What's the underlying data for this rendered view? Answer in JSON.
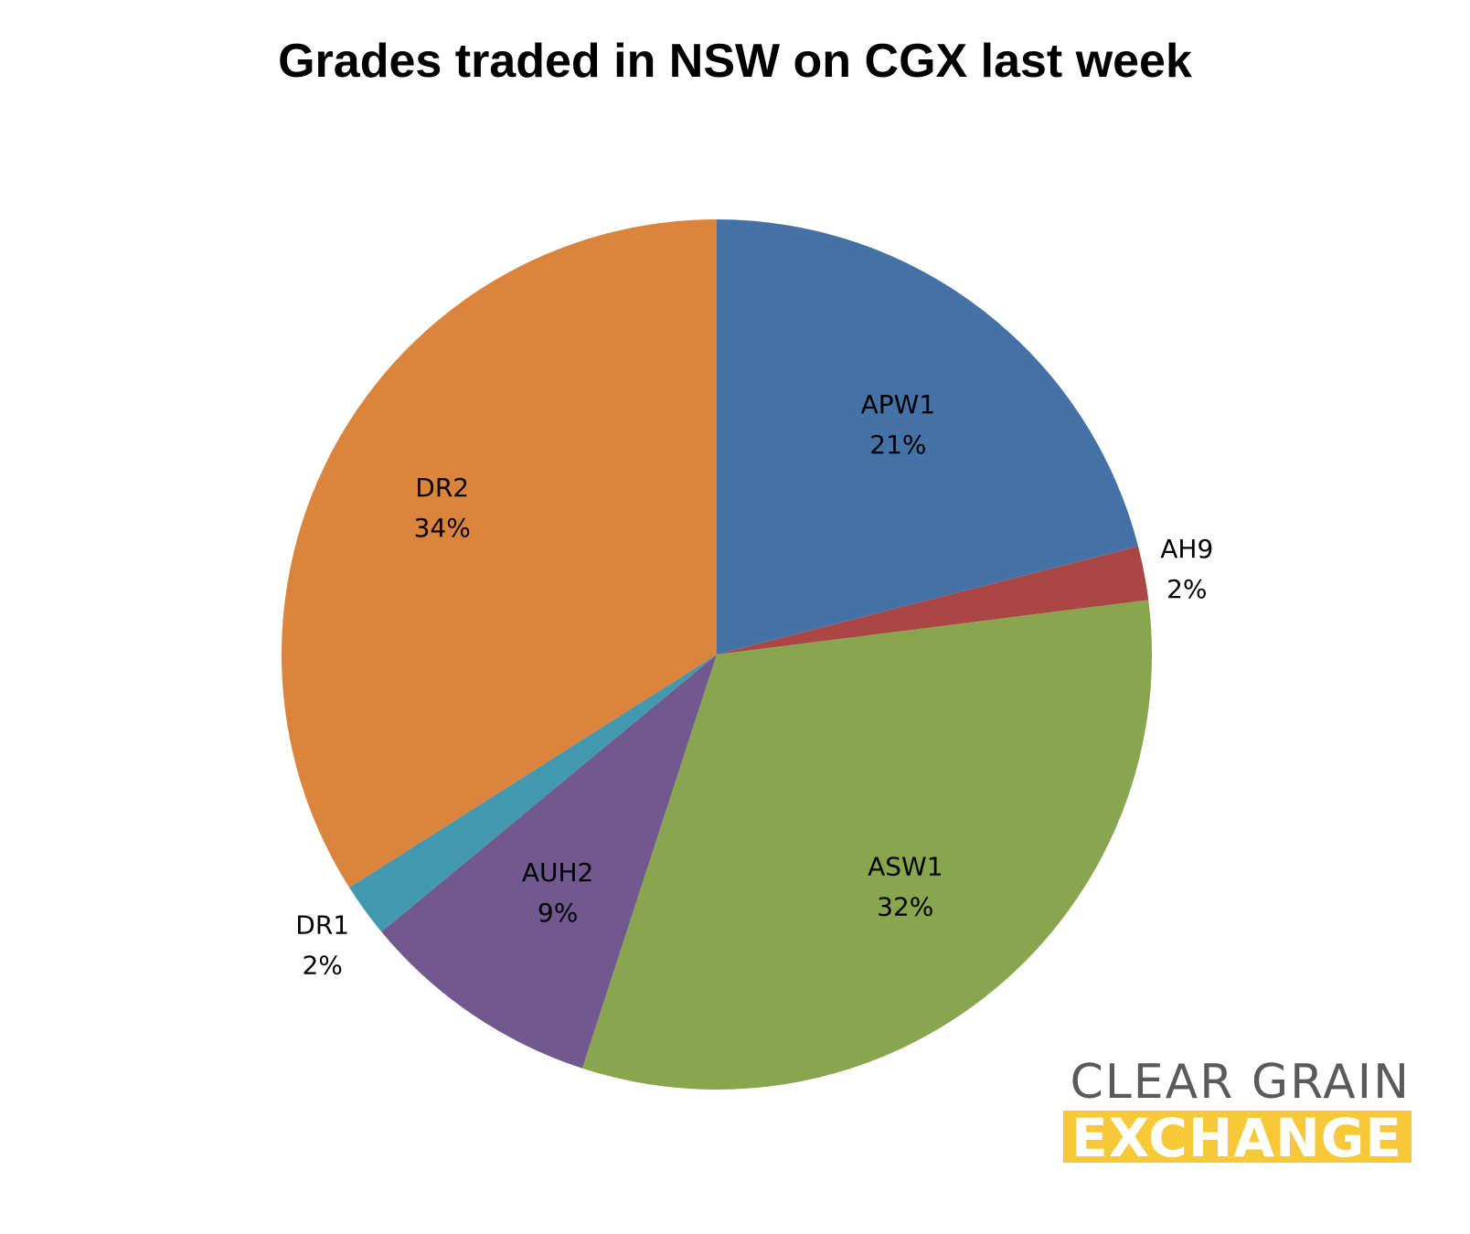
{
  "chart_data": {
    "type": "pie",
    "title": "Grades traded in NSW on CGX last week",
    "legend": "none",
    "start_angle_deg": 0,
    "direction": "clockwise",
    "slices": [
      {
        "label": "APW1",
        "value": 21,
        "display": "21%",
        "color": "#4472a7"
      },
      {
        "label": "AH9",
        "value": 2,
        "display": "2%",
        "color": "#aa4643"
      },
      {
        "label": "ASW1",
        "value": 32,
        "display": "32%",
        "color": "#89a54e"
      },
      {
        "label": "AUH2",
        "value": 9,
        "display": "9%",
        "color": "#71588f"
      },
      {
        "label": "DR1",
        "value": 2,
        "display": "2%",
        "color": "#4198af"
      },
      {
        "label": "DR2",
        "value": 34,
        "display": "34%",
        "color": "#db843d"
      }
    ]
  },
  "logo": {
    "line1": "CLEAR GRAIN",
    "line2": "EXCHANGE",
    "line1_color": "#5a5a5a",
    "line2_bg": "#f7c938"
  }
}
